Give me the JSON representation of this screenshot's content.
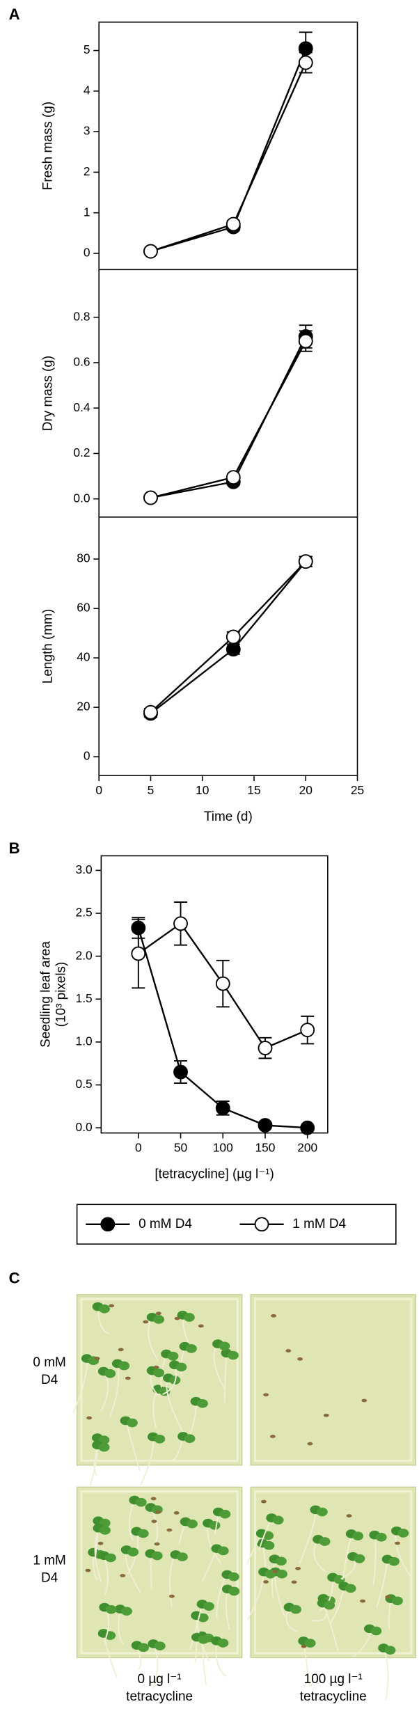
{
  "chart_data": [
    {
      "type": "line",
      "panel_label": "A",
      "ylabel": "Fresh mass (g)",
      "x": [
        5,
        13,
        20
      ],
      "xlim": [
        0,
        25
      ],
      "ylim": [
        -0.4,
        5.7
      ],
      "yticks": [
        0,
        1,
        2,
        3,
        4,
        5
      ],
      "series": [
        {
          "name": "0 mM D4",
          "color": "#000000",
          "values": [
            0.05,
            0.65,
            5.05
          ],
          "errors": [
            0.05,
            0.08,
            0.4
          ]
        },
        {
          "name": "1 mM D4",
          "color": "#ffffff",
          "values": [
            0.05,
            0.72,
            4.7
          ],
          "errors": [
            0.05,
            0.08,
            0.25
          ]
        }
      ]
    },
    {
      "type": "line",
      "ylabel": "Dry mass (g)",
      "x": [
        5,
        13,
        20
      ],
      "xlim": [
        0,
        25
      ],
      "ylim": [
        -0.08,
        1.01
      ],
      "yticks": [
        {
          "value": 0,
          "label": "0.0"
        },
        0.2,
        0.4,
        0.6,
        0.8
      ],
      "series": [
        {
          "name": "0 mM D4",
          "color": "#000000",
          "values": [
            0.005,
            0.075,
            0.715
          ],
          "errors": [
            0.005,
            0.01,
            0.05
          ]
        },
        {
          "name": "1 mM D4",
          "color": "#ffffff",
          "values": [
            0.005,
            0.095,
            0.695
          ],
          "errors": [
            0.005,
            0.01,
            0.045
          ]
        }
      ]
    },
    {
      "type": "line",
      "ylabel": "Length (mm)",
      "xlabel": "Time (d)",
      "x": [
        5,
        13,
        20
      ],
      "xlim": [
        0,
        25
      ],
      "xticks": [
        0,
        5,
        10,
        15,
        20,
        25
      ],
      "ylim": [
        -7.6,
        97
      ],
      "yticks": [
        0,
        20,
        40,
        60,
        80
      ],
      "series": [
        {
          "name": "0 mM D4",
          "color": "#000000",
          "values": [
            17.5,
            43.5,
            79
          ],
          "errors": [
            1.5,
            2,
            2
          ]
        },
        {
          "name": "1 mM D4",
          "color": "#ffffff",
          "values": [
            18,
            48.5,
            79
          ],
          "errors": [
            1.5,
            2,
            2
          ]
        }
      ]
    },
    {
      "type": "line",
      "panel_label": "B",
      "ylabel": [
        "Seedling leaf area",
        "(10³ pixels)"
      ],
      "xlabel": "[tetracycline] (µg l⁻¹)",
      "x": [
        0,
        50,
        100,
        150,
        200
      ],
      "xlim": [
        -44,
        224
      ],
      "xticks": [
        0,
        50,
        100,
        150,
        200
      ],
      "ylim": [
        -0.06,
        3.17
      ],
      "yticks": [
        {
          "value": 0,
          "label": "0.0"
        },
        0.5,
        {
          "value": 1,
          "label": "1.0"
        },
        1.5,
        {
          "value": 2,
          "label": "2.0"
        },
        2.5,
        {
          "value": 3,
          "label": "3.0"
        }
      ],
      "legend": "below",
      "series": [
        {
          "name": "0 mM D4",
          "color": "#000000",
          "values": [
            2.33,
            0.65,
            0.23,
            0.03,
            0.0
          ],
          "errors": [
            0.12,
            0.13,
            0.08,
            0.02,
            0.01
          ]
        },
        {
          "name": "1 mM D4",
          "color": "#ffffff",
          "values": [
            2.03,
            2.38,
            1.68,
            0.93,
            1.14
          ],
          "errors": [
            0.4,
            0.25,
            0.27,
            0.12,
            0.16
          ]
        }
      ]
    }
  ],
  "photo_panel": {
    "panel_label": "C",
    "row_labels": [
      [
        "0 mM",
        "D4"
      ],
      [
        "1 mM",
        "D4"
      ]
    ],
    "column_labels": [
      [
        "0 µg l⁻¹",
        "tetracycline"
      ],
      [
        "100 µg l⁻¹",
        "tetracycline"
      ]
    ]
  }
}
